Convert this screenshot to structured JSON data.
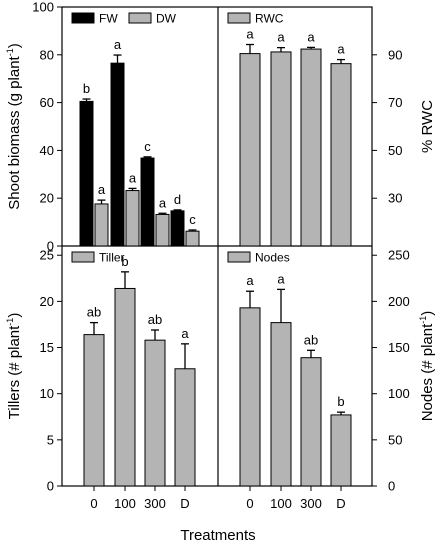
{
  "figure": {
    "x_axis_title": "Treatments"
  },
  "chart_data": [
    {
      "type": "bar",
      "panel": "top-left",
      "categories": [
        "0",
        "100",
        "300",
        "D"
      ],
      "ylabel": "Shoot biomass (g plant",
      "ylabel_sup": "-1",
      "ylabel_end": ")",
      "ylim": [
        0,
        100
      ],
      "yticks": [
        0,
        20,
        40,
        60,
        80,
        100
      ],
      "y_axis_side": "left",
      "legend_position": "top-left",
      "series": [
        {
          "name": "FW",
          "color": "#000000",
          "values": [
            60.5,
            76.5,
            36.8,
            14.7
          ],
          "errors": [
            1.0,
            3.4,
            0.5,
            0.4
          ],
          "letters": [
            "b",
            "a",
            "c",
            "d"
          ]
        },
        {
          "name": "DW",
          "color": "#b4b4b4",
          "values": [
            17.6,
            23.2,
            13.2,
            6.2
          ],
          "errors": [
            1.6,
            0.9,
            0.5,
            0.5
          ],
          "letters": [
            "a",
            "a",
            "a",
            "c"
          ]
        }
      ]
    },
    {
      "type": "bar",
      "panel": "top-right",
      "categories": [
        "0",
        "100",
        "300",
        "D"
      ],
      "ylabel": "% RWC",
      "ylim": [
        10,
        110
      ],
      "yticks": [
        30,
        50,
        70,
        90
      ],
      "y_axis_side": "right",
      "legend_position": "top-left",
      "series": [
        {
          "name": "RWC",
          "color": "#b4b4b4",
          "values": [
            90.5,
            91.2,
            92.4,
            86.3
          ],
          "errors": [
            3.8,
            1.8,
            0.7,
            1.7
          ],
          "letters": [
            "a",
            "a",
            "a",
            "a"
          ]
        }
      ]
    },
    {
      "type": "bar",
      "panel": "bottom-left",
      "categories": [
        "0",
        "100",
        "300",
        "D"
      ],
      "ylabel": "Tillers (# plant",
      "ylabel_sup": "-1",
      "ylabel_end": ")",
      "ylim": [
        0,
        26
      ],
      "yticks": [
        0,
        5,
        10,
        15,
        20,
        25
      ],
      "y_axis_side": "left",
      "legend_position": "top-left",
      "series": [
        {
          "name": "Tiller",
          "color": "#b4b4b4",
          "values": [
            16.4,
            21.4,
            15.8,
            12.7
          ],
          "errors": [
            1.3,
            1.8,
            1.1,
            2.7
          ],
          "letters": [
            "ab",
            "b",
            "ab",
            "a"
          ]
        }
      ]
    },
    {
      "type": "bar",
      "panel": "bottom-right",
      "categories": [
        "0",
        "100",
        "300",
        "D"
      ],
      "ylabel": "Nodes (# plant",
      "ylabel_sup": "-1",
      "ylabel_end": ")",
      "ylim": [
        0,
        260
      ],
      "yticks": [
        0,
        50,
        100,
        150,
        200,
        250
      ],
      "y_axis_side": "right",
      "legend_position": "top-left",
      "series": [
        {
          "name": "Nodes",
          "color": "#b4b4b4",
          "values": [
            193,
            177,
            139,
            77
          ],
          "errors": [
            18,
            36,
            8,
            3
          ],
          "letters": [
            "a",
            "a",
            "ab",
            "b"
          ]
        }
      ]
    }
  ]
}
